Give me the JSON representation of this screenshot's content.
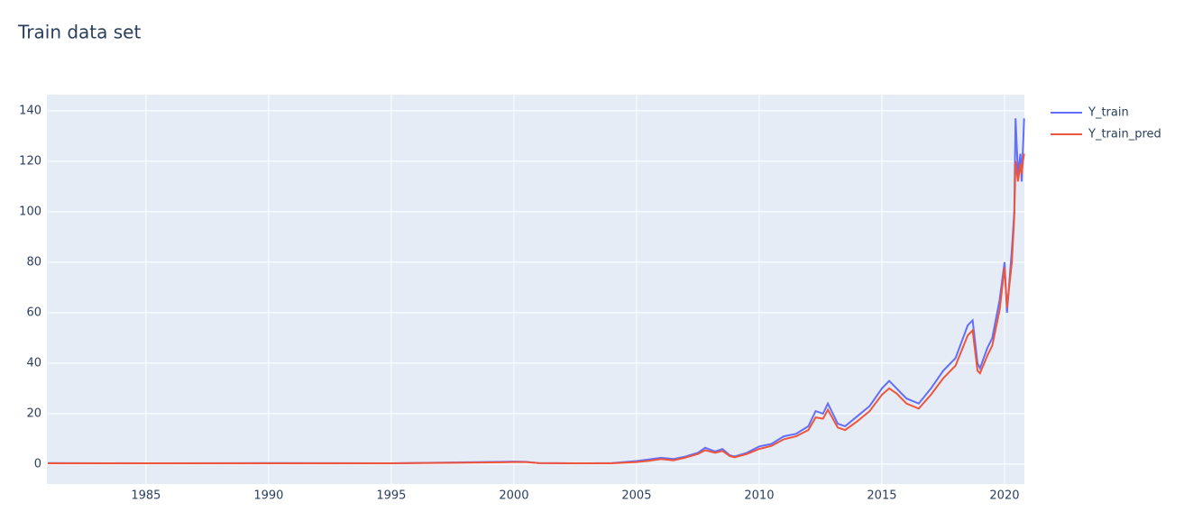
{
  "chart_data": {
    "type": "line",
    "title": "Train data set",
    "x": [
      1981,
      1985,
      1990,
      1995,
      1999.5,
      2000,
      2000.5,
      2001,
      2003,
      2004,
      2005,
      2005.5,
      2006,
      2006.5,
      2007,
      2007.5,
      2007.8,
      2008.2,
      2008.5,
      2008.8,
      2009,
      2009.5,
      2010,
      2010.5,
      2011,
      2011.5,
      2012,
      2012.3,
      2012.6,
      2012.8,
      2013.2,
      2013.5,
      2014,
      2014.5,
      2015,
      2015.3,
      2015.6,
      2016,
      2016.5,
      2017,
      2017.5,
      2018,
      2018.5,
      2018.7,
      2018.9,
      2019,
      2019.3,
      2019.5,
      2019.8,
      2020,
      2020.1,
      2020.3,
      2020.4,
      2020.45,
      2020.55,
      2020.65,
      2020.7,
      2020.75,
      2020.8
    ],
    "series": [
      {
        "name": "Y_train",
        "color": "#636efa",
        "values": [
          0.4,
          0.3,
          0.4,
          0.3,
          0.9,
          1.0,
          0.9,
          0.4,
          0.3,
          0.4,
          1.2,
          1.8,
          2.5,
          2.0,
          3.0,
          4.5,
          6.5,
          5,
          6,
          3.5,
          3,
          4.5,
          7,
          8,
          11,
          12,
          15,
          21,
          20,
          24,
          16,
          15,
          19,
          23,
          30,
          33,
          30,
          26,
          24,
          30,
          37,
          42,
          55,
          57,
          40,
          38,
          46,
          50,
          65,
          80,
          60,
          85,
          100,
          137,
          115,
          123,
          112,
          125,
          137
        ]
      },
      {
        "name": "Y_train_pred",
        "color": "#ef553b",
        "values": [
          0.3,
          0.3,
          0.3,
          0.3,
          0.7,
          0.8,
          0.8,
          0.4,
          0.3,
          0.3,
          0.8,
          1.3,
          2.0,
          1.5,
          2.6,
          4.0,
          5.5,
          4.5,
          5.2,
          3.2,
          2.7,
          4.0,
          6,
          7.2,
          9.8,
          11,
          13.5,
          18.5,
          18,
          21.5,
          14.5,
          13.5,
          17,
          21,
          27.5,
          30,
          28,
          24,
          22,
          27.5,
          34,
          39,
          51,
          53,
          37,
          36,
          43,
          47,
          61,
          78,
          62,
          80,
          98,
          120,
          112,
          119,
          115,
          120,
          123
        ]
      }
    ],
    "xlim": [
      1980.96,
      2020.81
    ],
    "xticks": [
      1985,
      1990,
      1995,
      2000,
      2005,
      2010,
      2015,
      2020
    ],
    "ylim": [
      -7.9,
      146.4
    ],
    "yticks": [
      0,
      20,
      40,
      60,
      80,
      100,
      120,
      140
    ],
    "grid": true,
    "legend": "right"
  }
}
